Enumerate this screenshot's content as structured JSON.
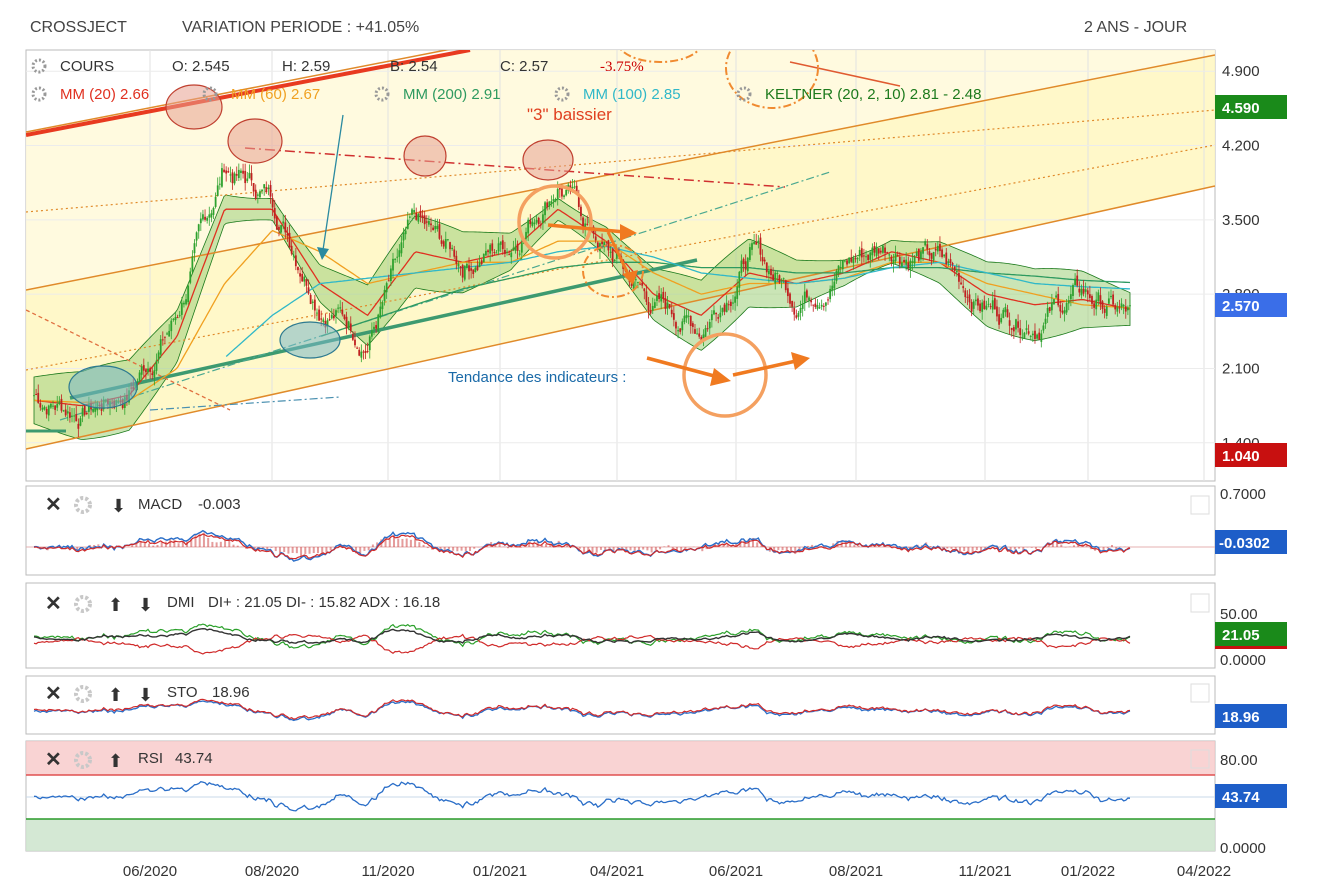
{
  "header": {
    "ticker": "CROSSJECT",
    "variation": "VARIATION PERIODE : +41.05%",
    "period": "2 ANS - JOUR"
  },
  "legend": {
    "cours": "COURS",
    "open": "O: 2.545",
    "high": "H: 2.59",
    "low": "B: 2.54",
    "close": "C: 2.57",
    "change": "-3.75%",
    "mm20": "MM (20) 2.66",
    "mm60": "MM (60) 2.67",
    "mm200": "MM (200) 2.91",
    "mm100": "MM (100) 2.85",
    "keltner": "KELTNER (20, 2, 10) 2.81 - 2.48"
  },
  "annotations": {
    "baissier": "\"3\" baissier",
    "tendance": "Tendance des indicateurs :"
  },
  "colors": {
    "mm20": "#e03020",
    "mm60": "#f0a020",
    "mm200": "#2e9a60",
    "mm100": "#30b8c8",
    "keltner": "#1c7a1c",
    "price_badge": "#3a6ee8",
    "upper_badge": "#1a8a1a",
    "lower_badge": "#c81010",
    "channel": "#e08a2a",
    "candle_up": "#2ea12e",
    "candle_down": "#c02020"
  },
  "main_axis": {
    "ticks": [
      "4.900",
      "4.200",
      "3.500",
      "2.800",
      "2.100",
      "1.400"
    ],
    "badge_top": "4.590",
    "badge_price": "2.570",
    "badge_bottom": "1.040"
  },
  "x_axis": {
    "labels": [
      "06/2020",
      "08/2020",
      "11/2020",
      "01/2021",
      "04/2021",
      "06/2021",
      "08/2021",
      "11/2021",
      "01/2022",
      "04/2022"
    ]
  },
  "macd": {
    "title": "MACD",
    "value": "-0.003",
    "ticks": [
      "0.7000"
    ],
    "badge": "-0.0302"
  },
  "dmi": {
    "title": "DMI",
    "value": "DI+ : 21.05 DI- : 15.82 ADX : 16.18",
    "ticks": [
      "50.00",
      "0.0000"
    ],
    "badge": "21.05"
  },
  "sto": {
    "title": "STO",
    "value": "18.96",
    "badge": "18.96"
  },
  "rsi": {
    "title": "RSI",
    "value": "43.74",
    "ticks": [
      "80.00",
      "0.0000"
    ],
    "badge": "43.74"
  },
  "chart_data": {
    "type": "line",
    "title": "CROSSJECT",
    "x": [
      "2020-03",
      "2020-04",
      "2020-05",
      "2020-06",
      "2020-07",
      "2020-08",
      "2020-09",
      "2020-10",
      "2020-11",
      "2020-12",
      "2021-01",
      "2021-02",
      "2021-03",
      "2021-04",
      "2021-05",
      "2021-06",
      "2021-07",
      "2021-08",
      "2021-09",
      "2021-10",
      "2021-11",
      "2021-12",
      "2022-01",
      "2022-02"
    ],
    "series": [
      {
        "name": "COURS",
        "values": [
          1.85,
          1.7,
          1.9,
          2.6,
          4.0,
          3.7,
          2.8,
          2.4,
          3.4,
          3.1,
          3.3,
          3.9,
          3.2,
          2.7,
          2.5,
          3.2,
          2.8,
          3.1,
          3.3,
          3.1,
          2.7,
          2.6,
          2.8,
          2.57
        ]
      },
      {
        "name": "MM (20)",
        "values": [
          1.8,
          1.75,
          1.85,
          2.4,
          3.6,
          3.6,
          2.9,
          2.6,
          3.2,
          3.1,
          3.2,
          3.6,
          3.3,
          2.8,
          2.6,
          3.0,
          2.9,
          3.0,
          3.2,
          3.1,
          2.8,
          2.7,
          2.75,
          2.66
        ]
      },
      {
        "name": "MM (60)",
        "values": [
          1.8,
          1.78,
          1.8,
          2.1,
          2.9,
          3.4,
          3.2,
          2.9,
          3.0,
          3.1,
          3.1,
          3.3,
          3.3,
          3.0,
          2.8,
          2.9,
          2.9,
          2.95,
          3.1,
          3.1,
          2.9,
          2.8,
          2.7,
          2.67
        ]
      },
      {
        "name": "MM (200)",
        "values": [
          null,
          null,
          null,
          null,
          null,
          null,
          2.4,
          2.55,
          2.7,
          2.85,
          2.95,
          3.05,
          3.1,
          3.1,
          3.05,
          3.05,
          3.0,
          3.0,
          3.05,
          3.05,
          3.0,
          2.97,
          2.93,
          2.91
        ]
      },
      {
        "name": "MM (100)",
        "values": [
          null,
          null,
          null,
          null,
          2.2,
          2.6,
          2.9,
          2.95,
          3.0,
          3.05,
          3.1,
          3.2,
          3.25,
          3.15,
          3.0,
          2.95,
          2.9,
          2.95,
          3.05,
          3.1,
          3.0,
          2.9,
          2.87,
          2.85
        ]
      }
    ],
    "ylim": [
      1.04,
      5.1
    ],
    "log_scale": false,
    "grid": true,
    "legend_position": "top-left"
  }
}
